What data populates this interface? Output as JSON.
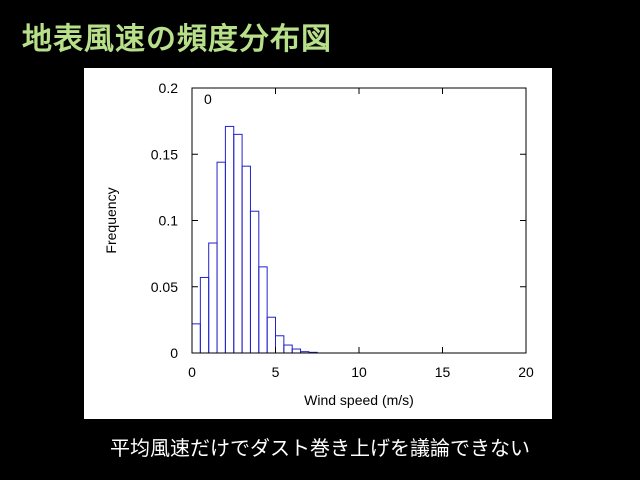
{
  "slide": {
    "title": "地表風速の頻度分布図",
    "caption": "平均風速だけでダスト巻き上げを議論できない"
  },
  "colors": {
    "background": "#000000",
    "title": "#b8e08a",
    "caption": "#ffffff",
    "bars": "#2222cc",
    "panel": "#ffffff"
  },
  "chart_data": {
    "type": "bar",
    "subtype": "histogram",
    "annotation": "0",
    "xlabel": "Wind speed (m/s)",
    "ylabel": "Frequency",
    "xlim": [
      0,
      20
    ],
    "ylim": [
      0,
      0.2
    ],
    "xticks": [
      0,
      5,
      10,
      15,
      20
    ],
    "yticks": [
      0,
      0.05,
      0.1,
      0.15,
      0.2
    ],
    "xtick_labels": [
      "0",
      "5",
      "10",
      "15",
      "20"
    ],
    "ytick_labels": [
      "0",
      "0.05",
      "0.1",
      "0.15",
      "0.2"
    ],
    "bin_width": 0.5,
    "bin_starts": [
      0,
      0.5,
      1,
      1.5,
      2,
      2.5,
      3,
      3.5,
      4,
      4.5,
      5,
      5.5,
      6,
      6.5,
      7
    ],
    "values": [
      0.022,
      0.057,
      0.083,
      0.144,
      0.171,
      0.165,
      0.141,
      0.107,
      0.065,
      0.027,
      0.013,
      0.006,
      0.003,
      0.001,
      0.0005
    ],
    "grid": false,
    "legend": false
  }
}
